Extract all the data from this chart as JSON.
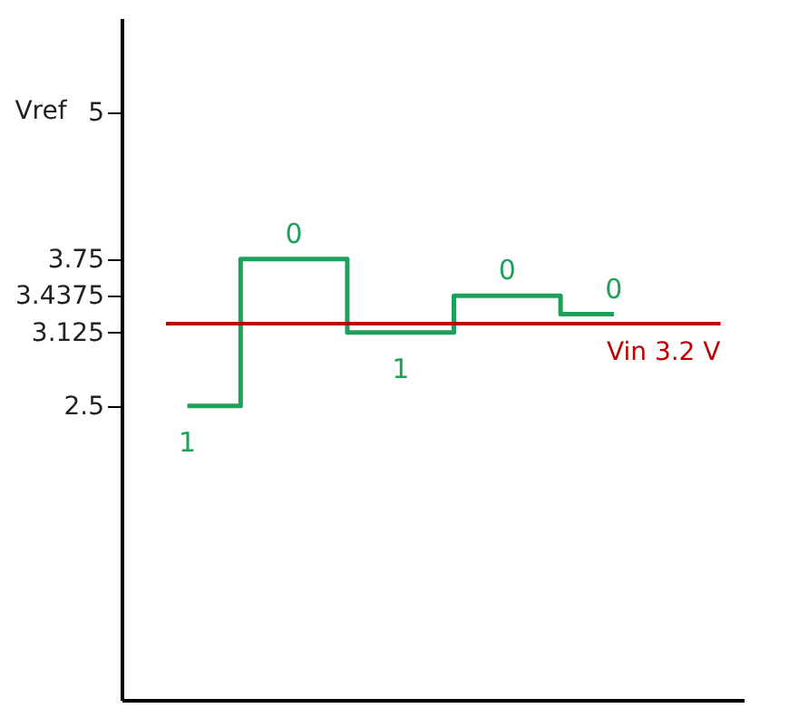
{
  "chart_data": {
    "type": "step",
    "ylabel": "Vref",
    "categories": [
      null,
      null,
      null,
      null,
      null
    ],
    "series": [
      {
        "color": "#1fa05a",
        "values": [
          2.5,
          3.75,
          3.125,
          3.4375,
          3.28125
        ]
      }
    ],
    "annotations": [
      "1",
      "0",
      "1",
      "0",
      "0"
    ],
    "ylim": [
      0,
      5.8
    ],
    "yticks": [
      2.5,
      {
        "value": 3.125,
        "label": "3.125"
      },
      {
        "value": 3.4375,
        "label": "3.4375"
      },
      {
        "value": 3.75,
        "label": "3.75"
      },
      {
        "value": 5,
        "label": "5"
      }
    ],
    "ref_lines": [
      {
        "axis": "y",
        "value": 3.2,
        "label": "Vin  3.2 V",
        "color": "#c00000"
      }
    ],
    "tick_labels": "y",
    "grid": false
  }
}
